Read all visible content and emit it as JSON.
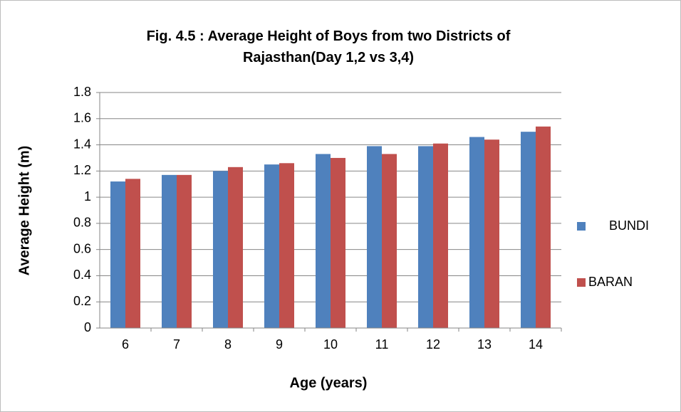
{
  "chart_data": {
    "type": "bar",
    "title": "Fig. 4.5 : Average Height of Boys from two Districts of Rajasthan(Day 1,2 vs 3,4)",
    "x_label": "Age (years)",
    "y_label": "Average Height (m)",
    "categories": [
      "6",
      "7",
      "8",
      "9",
      "10",
      "11",
      "12",
      "13",
      "14"
    ],
    "series": [
      {
        "name": "BUNDI",
        "color": "#4f81bd",
        "values": [
          1.12,
          1.17,
          1.2,
          1.25,
          1.33,
          1.39,
          1.39,
          1.46,
          1.5
        ]
      },
      {
        "name": "BARAN",
        "color": "#c0504d",
        "values": [
          1.14,
          1.17,
          1.23,
          1.26,
          1.3,
          1.33,
          1.41,
          1.44,
          1.54
        ]
      }
    ],
    "ylim": [
      0,
      1.8
    ],
    "yticks": [
      0,
      0.2,
      0.4,
      0.6,
      0.8,
      1,
      1.2,
      1.4,
      1.6,
      1.8
    ],
    "grid": true,
    "legend": "right"
  }
}
